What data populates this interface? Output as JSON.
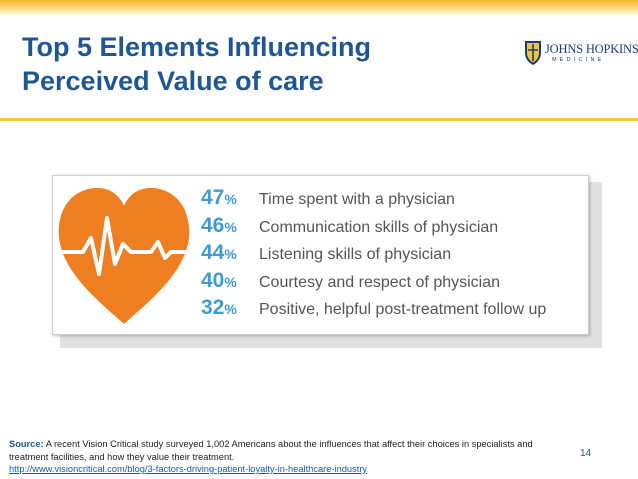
{
  "slide": {
    "title_lines": [
      "Top 5 Elements Influencing",
      "Perceived Value of care"
    ],
    "page_number": "14"
  },
  "logo": {
    "name": "JOHNS HOPKINS",
    "subtitle": "MEDICINE"
  },
  "stats": [
    {
      "percent": "47",
      "unit": "%",
      "label": "Time spent with a physician"
    },
    {
      "percent": "46",
      "unit": "%",
      "label": "Communication skills of physician"
    },
    {
      "percent": "44",
      "unit": "%",
      "label": "Listening skills of physician"
    },
    {
      "percent": "40",
      "unit": "%",
      "label": "Courtesy and respect of physician"
    },
    {
      "percent": "32",
      "unit": "%",
      "label": "Positive, helpful post-treatment follow up"
    }
  ],
  "source": {
    "label": "Source:",
    "text": " A recent Vision Critical study surveyed 1,002 Americans about the influences that affect their choices in specialists and treatment facilities, and how they value their treatment.",
    "link": "http://www.visioncritical.com/blog/3-factors-driving-patient-loyalty-in-healthcare-industry"
  },
  "icons": {
    "heart": "heart-heartbeat-icon",
    "logo": "johns-hopkins-shield-icon"
  },
  "colors": {
    "title": "#1f5694",
    "accent_bar": "#f7b529",
    "heart": "#ef7d22",
    "percent": "#3f9bd1",
    "label": "#555555"
  }
}
